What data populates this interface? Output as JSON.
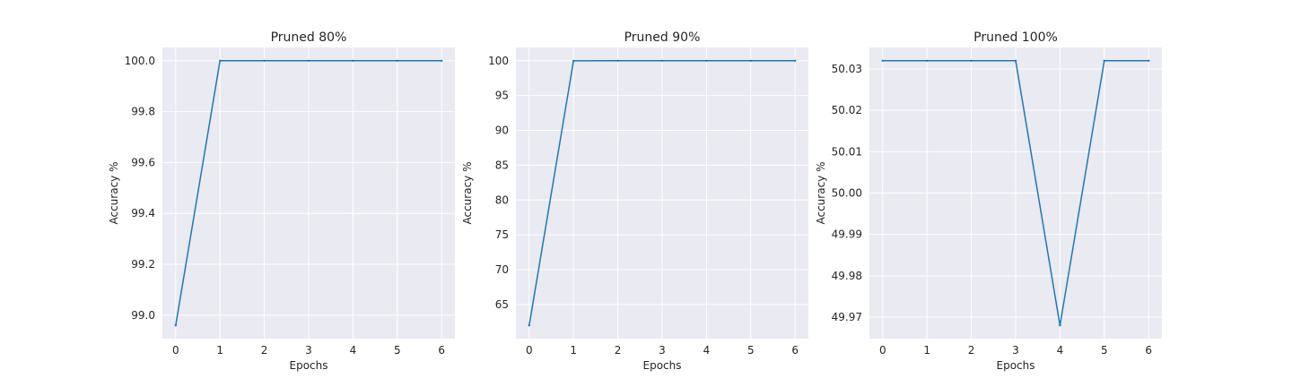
{
  "chart_data": [
    {
      "type": "line",
      "title": "Pruned 80%",
      "xlabel": "Epochs",
      "ylabel": "Accuracy %",
      "x": [
        0,
        1,
        2,
        3,
        4,
        5,
        6
      ],
      "series": [
        {
          "values": [
            98.96,
            100.0,
            100.0,
            100.0,
            100.0,
            100.0,
            100.0
          ]
        }
      ],
      "xlim": [
        -0.3,
        6.3
      ],
      "ylim": [
        98.908,
        100.052
      ],
      "xticks": [
        0,
        1,
        2,
        3,
        4,
        5,
        6
      ],
      "xtick_labels": [
        "0",
        "1",
        "2",
        "3",
        "4",
        "5",
        "6"
      ],
      "yticks": [
        99.0,
        99.2,
        99.4,
        99.6,
        99.8,
        100.0
      ],
      "ytick_labels": [
        "99.0",
        "99.2",
        "99.4",
        "99.6",
        "99.8",
        "100.0"
      ],
      "grid": true,
      "color": "#1f77b4"
    },
    {
      "type": "line",
      "title": "Pruned 90%",
      "xlabel": "Epochs",
      "ylabel": "Accuracy %",
      "x": [
        0,
        1,
        2,
        3,
        4,
        5,
        6
      ],
      "series": [
        {
          "values": [
            62.0,
            99.98,
            100.0,
            100.0,
            100.0,
            100.0,
            100.0
          ]
        }
      ],
      "xlim": [
        -0.3,
        6.3
      ],
      "ylim": [
        60.1,
        101.9
      ],
      "xticks": [
        0,
        1,
        2,
        3,
        4,
        5,
        6
      ],
      "xtick_labels": [
        "0",
        "1",
        "2",
        "3",
        "4",
        "5",
        "6"
      ],
      "yticks": [
        65,
        70,
        75,
        80,
        85,
        90,
        95,
        100
      ],
      "ytick_labels": [
        "65",
        "70",
        "75",
        "80",
        "85",
        "90",
        "95",
        "100"
      ],
      "grid": true,
      "color": "#1f77b4"
    },
    {
      "type": "line",
      "title": "Pruned 100%",
      "xlabel": "Epochs",
      "ylabel": "Accuracy %",
      "x": [
        0,
        1,
        2,
        3,
        4,
        5,
        6
      ],
      "series": [
        {
          "values": [
            50.032,
            50.032,
            50.032,
            50.032,
            49.968,
            50.032,
            50.032
          ]
        }
      ],
      "xlim": [
        -0.3,
        6.3
      ],
      "ylim": [
        49.9648,
        50.0352
      ],
      "xticks": [
        0,
        1,
        2,
        3,
        4,
        5,
        6
      ],
      "xtick_labels": [
        "0",
        "1",
        "2",
        "3",
        "4",
        "5",
        "6"
      ],
      "yticks": [
        49.97,
        49.98,
        49.99,
        50.0,
        50.01,
        50.02,
        50.03
      ],
      "ytick_labels": [
        "49.97",
        "49.98",
        "49.99",
        "50.00",
        "50.01",
        "50.02",
        "50.03"
      ],
      "grid": true,
      "color": "#1f77b4"
    }
  ]
}
